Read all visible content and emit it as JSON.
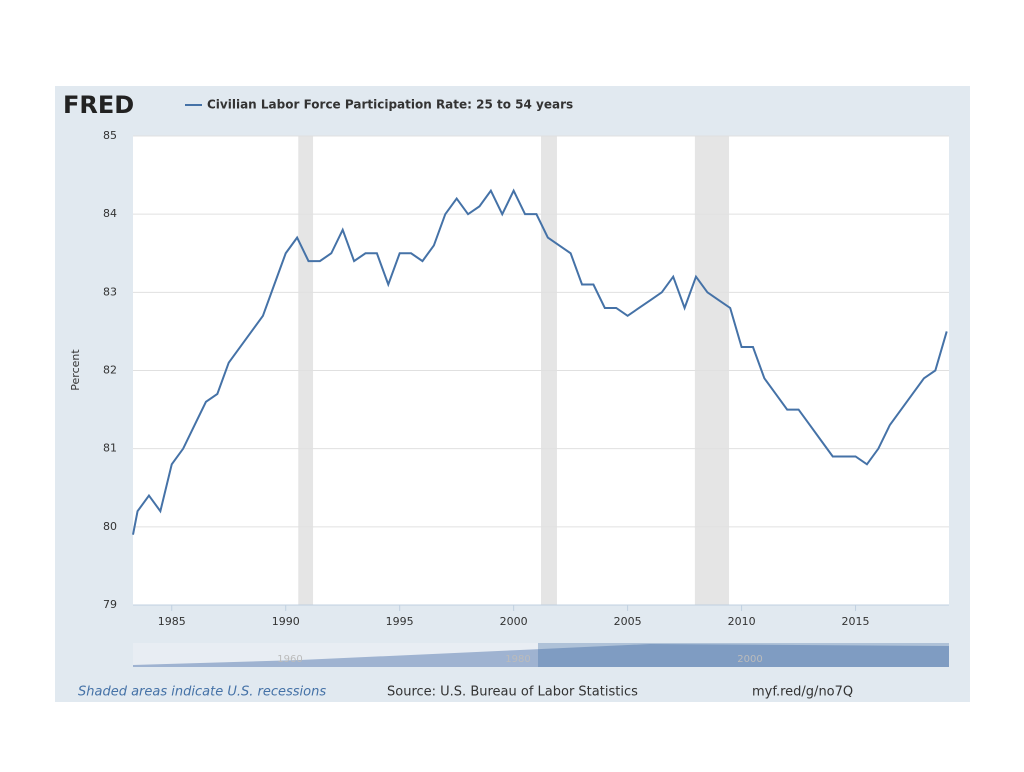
{
  "chart_data": {
    "type": "line",
    "logo": "FRED",
    "x": [
      1983.3,
      1983.5,
      1984,
      1984.5,
      1985,
      1985.5,
      1986,
      1986.5,
      1987,
      1987.5,
      1988,
      1988.5,
      1989,
      1989.5,
      1990,
      1990.5,
      1991,
      1991.5,
      1992,
      1992.5,
      1993,
      1993.5,
      1994,
      1994.5,
      1995,
      1995.5,
      1996,
      1996.5,
      1997,
      1997.5,
      1998,
      1998.5,
      1999,
      1999.5,
      2000,
      2000.5,
      2001,
      2001.5,
      2002,
      2002.5,
      2003,
      2003.5,
      2004,
      2004.5,
      2005,
      2005.5,
      2006,
      2006.5,
      2007,
      2007.5,
      2008,
      2008.5,
      2009,
      2009.5,
      2010,
      2010.5,
      2011,
      2011.5,
      2012,
      2012.5,
      2013,
      2013.5,
      2014,
      2014.5,
      2015,
      2015.5,
      2016,
      2016.5,
      2017,
      2017.5,
      2018,
      2018.5,
      2019
    ],
    "series": [
      {
        "name": "Civilian Labor Force Participation Rate: 25 to 54 years",
        "color": "#4572a7",
        "values": [
          79.9,
          80.2,
          80.4,
          80.2,
          80.8,
          81.0,
          81.3,
          81.6,
          81.7,
          82.1,
          82.3,
          82.5,
          82.7,
          83.1,
          83.5,
          83.7,
          83.4,
          83.4,
          83.5,
          83.8,
          83.4,
          83.5,
          83.5,
          83.1,
          83.5,
          83.5,
          83.4,
          83.6,
          84.0,
          84.2,
          84.0,
          84.1,
          84.3,
          84.0,
          84.3,
          84.0,
          84.0,
          83.7,
          83.6,
          83.5,
          83.1,
          83.1,
          82.8,
          82.8,
          82.7,
          82.8,
          82.9,
          83.0,
          83.2,
          82.8,
          83.2,
          83.0,
          82.9,
          82.8,
          82.3,
          82.3,
          81.9,
          81.7,
          81.5,
          81.5,
          81.3,
          81.1,
          80.9,
          80.9,
          80.9,
          80.8,
          81.0,
          81.3,
          81.5,
          81.7,
          81.9,
          82.0,
          82.5
        ]
      }
    ],
    "recessions": [
      [
        1990.55,
        1991.2
      ],
      [
        2001.2,
        2001.9
      ],
      [
        2007.95,
        2009.45
      ]
    ],
    "ylabel": "Percent",
    "xlim": [
      1983.3,
      2019.1
    ],
    "xticks": [
      1985,
      1990,
      1995,
      2000,
      2005,
      2010,
      2015
    ],
    "ylim": [
      79,
      85
    ],
    "yticks": [
      79,
      80,
      81,
      82,
      83,
      84,
      85
    ],
    "grid": true,
    "navigator_labels": [
      "1960",
      "1980",
      "2000"
    ],
    "notes": {
      "recessions": "Shaded areas indicate U.S. recessions",
      "source": "Source: U.S. Bureau of Labor Statistics",
      "link": "myf.red/g/no7Q"
    }
  }
}
